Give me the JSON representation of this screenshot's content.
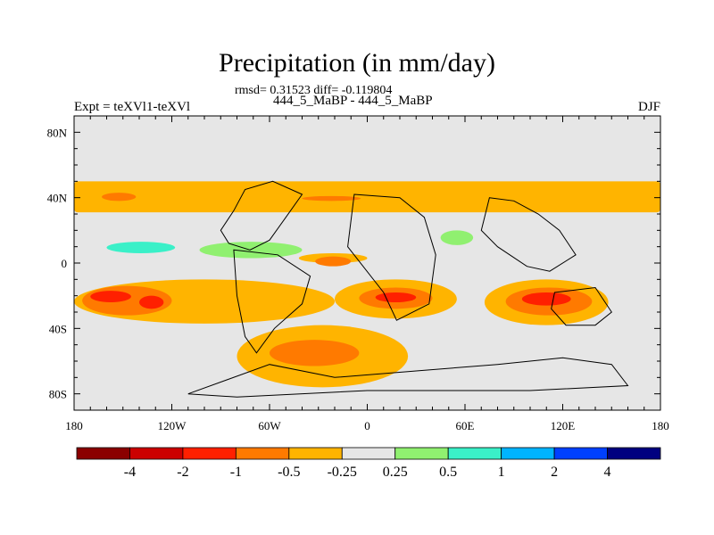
{
  "chart_data": {
    "type": "heatmap",
    "title": "Precipitation (in mm/day)",
    "stats": "rmsd= 0.31523 diff= -0.119804",
    "subtitle": "444_5_MaBP - 444_5_MaBP",
    "left_label": "Expt = teXVl1-teXVl",
    "right_label": "DJF",
    "x_ticks": [
      {
        "value": -180,
        "label": "180"
      },
      {
        "value": -120,
        "label": "120W"
      },
      {
        "value": -60,
        "label": "60W"
      },
      {
        "value": 0,
        "label": "0"
      },
      {
        "value": 60,
        "label": "60E"
      },
      {
        "value": 120,
        "label": "120E"
      },
      {
        "value": 180,
        "label": "180"
      }
    ],
    "y_ticks": [
      {
        "value": 80,
        "label": "80N"
      },
      {
        "value": 40,
        "label": "40N"
      },
      {
        "value": 0,
        "label": "0"
      },
      {
        "value": -40,
        "label": "40S"
      },
      {
        "value": -80,
        "label": "80S"
      }
    ],
    "xlim": [
      -180,
      180
    ],
    "ylim": [
      -90,
      90
    ],
    "colorbar": {
      "colors": [
        "#8b0000",
        "#cc0000",
        "#ff2000",
        "#ff7a00",
        "#ffb400",
        "#e6e6e6",
        "#90f070",
        "#3af0c8",
        "#00b4ff",
        "#0040ff",
        "#000080"
      ],
      "labels": [
        "-4",
        "-2",
        "-1",
        "-0.5",
        "-0.25",
        "0.25",
        "0.5",
        "1",
        "2",
        "4"
      ]
    },
    "regions": [
      {
        "level": -0.25,
        "lon": [
          -180,
          180
        ],
        "lat": [
          31,
          50
        ]
      },
      {
        "level": -0.5,
        "lon": [
          -163,
          -142
        ],
        "lat": [
          38,
          43
        ]
      },
      {
        "level": -0.5,
        "lon": [
          -40,
          -4
        ],
        "lat": [
          38,
          41
        ]
      },
      {
        "level": 0.25,
        "lon": [
          -103,
          -40
        ],
        "lat": [
          3,
          13
        ]
      },
      {
        "level": 0.5,
        "lon": [
          -160,
          -118
        ],
        "lat": [
          6,
          13
        ]
      },
      {
        "level": 0.25,
        "lon": [
          45,
          65
        ],
        "lat": [
          11,
          20
        ]
      },
      {
        "level": -0.25,
        "lon": [
          -180,
          -20
        ],
        "lat": [
          -37,
          -10
        ]
      },
      {
        "level": -0.5,
        "lon": [
          -175,
          -120
        ],
        "lat": [
          -32,
          -14
        ]
      },
      {
        "level": -1,
        "lon": [
          -170,
          -145
        ],
        "lat": [
          -24,
          -17
        ]
      },
      {
        "level": -1,
        "lon": [
          -140,
          -125
        ],
        "lat": [
          -28,
          -20
        ]
      },
      {
        "level": -0.25,
        "lon": [
          -20,
          55
        ],
        "lat": [
          -34,
          -10
        ]
      },
      {
        "level": -0.5,
        "lon": [
          -5,
          40
        ],
        "lat": [
          -28,
          -15
        ]
      },
      {
        "level": -1,
        "lon": [
          5,
          30
        ],
        "lat": [
          -24,
          -18
        ]
      },
      {
        "level": -0.25,
        "lon": [
          72,
          148
        ],
        "lat": [
          -38,
          -10
        ]
      },
      {
        "level": -0.5,
        "lon": [
          85,
          138
        ],
        "lat": [
          -32,
          -15
        ]
      },
      {
        "level": -1,
        "lon": [
          95,
          125
        ],
        "lat": [
          -26,
          -18
        ]
      },
      {
        "level": -0.25,
        "lon": [
          -80,
          25
        ],
        "lat": [
          -76,
          -38
        ]
      },
      {
        "level": -0.5,
        "lon": [
          -60,
          -5
        ],
        "lat": [
          -63,
          -47
        ]
      },
      {
        "level": -0.25,
        "lon": [
          -42,
          0
        ],
        "lat": [
          6,
          0
        ]
      },
      {
        "level": -0.5,
        "lon": [
          -32,
          -10
        ],
        "lat": [
          4,
          -2
        ]
      }
    ],
    "continents": [
      {
        "name": "North America",
        "points": [
          [
            -90,
            20
          ],
          [
            -82,
            32
          ],
          [
            -75,
            45
          ],
          [
            -58,
            50
          ],
          [
            -40,
            42
          ],
          [
            -50,
            28
          ],
          [
            -60,
            14
          ],
          [
            -72,
            8
          ],
          [
            -85,
            12
          ]
        ]
      },
      {
        "name": "South America",
        "points": [
          [
            -82,
            8
          ],
          [
            -55,
            5
          ],
          [
            -35,
            -8
          ],
          [
            -40,
            -25
          ],
          [
            -57,
            -40
          ],
          [
            -68,
            -55
          ],
          [
            -75,
            -45
          ],
          [
            -80,
            -20
          ]
        ]
      },
      {
        "name": "Africa",
        "points": [
          [
            -8,
            42
          ],
          [
            20,
            40
          ],
          [
            35,
            28
          ],
          [
            42,
            5
          ],
          [
            38,
            -25
          ],
          [
            18,
            -35
          ],
          [
            10,
            -18
          ],
          [
            -12,
            10
          ]
        ]
      },
      {
        "name": "Eurasia",
        "points": [
          [
            75,
            40
          ],
          [
            90,
            38
          ],
          [
            105,
            30
          ],
          [
            118,
            20
          ],
          [
            128,
            5
          ],
          [
            112,
            -5
          ],
          [
            98,
            -2
          ],
          [
            80,
            10
          ],
          [
            70,
            20
          ]
        ]
      },
      {
        "name": "Australia",
        "points": [
          [
            115,
            -18
          ],
          [
            140,
            -15
          ],
          [
            150,
            -30
          ],
          [
            140,
            -38
          ],
          [
            122,
            -38
          ],
          [
            113,
            -28
          ]
        ]
      },
      {
        "name": "Antarctica",
        "points": [
          [
            -110,
            -80
          ],
          [
            -60,
            -62
          ],
          [
            -20,
            -70
          ],
          [
            30,
            -66
          ],
          [
            80,
            -62
          ],
          [
            120,
            -58
          ],
          [
            150,
            -62
          ],
          [
            160,
            -75
          ],
          [
            100,
            -78
          ],
          [
            0,
            -78
          ],
          [
            -80,
            -82
          ]
        ]
      }
    ]
  }
}
